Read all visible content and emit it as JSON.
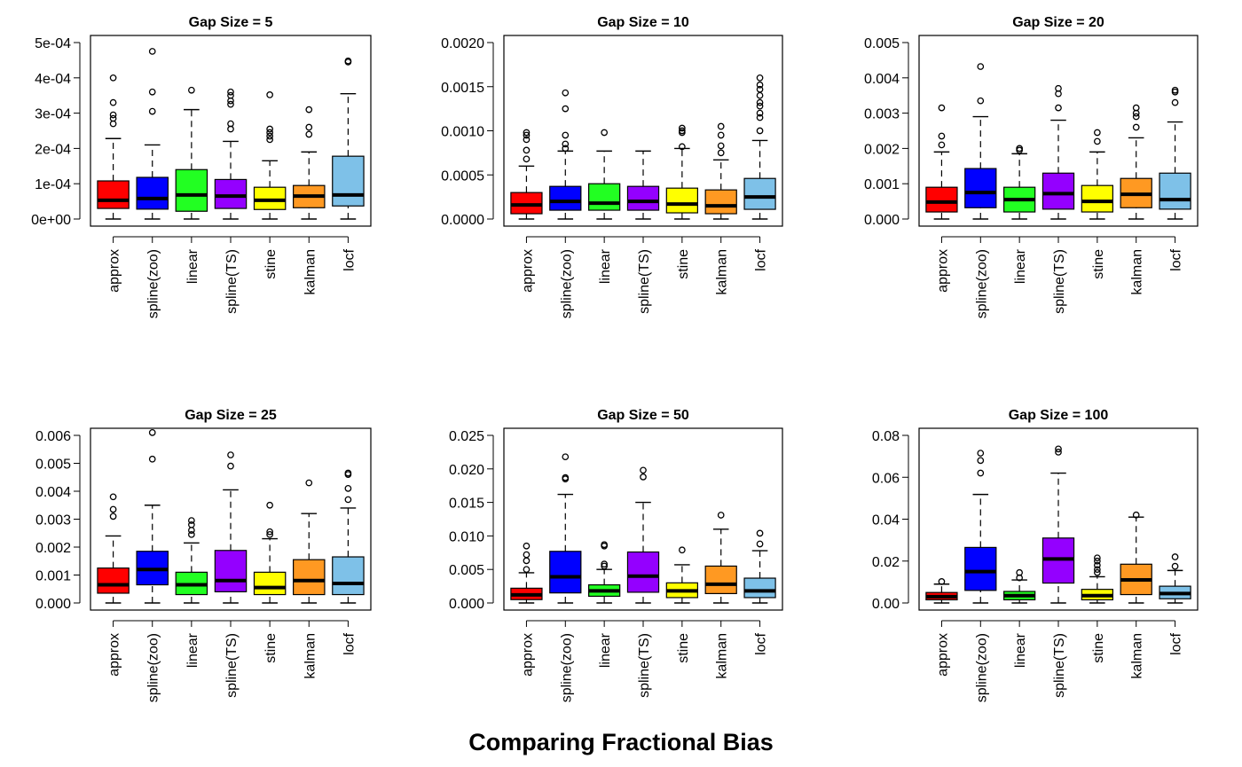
{
  "figure": {
    "title": "Comparing Fractional Bias"
  },
  "categories": [
    "approx",
    "spline(zoo)",
    "linear",
    "spline(TS)",
    "stine",
    "kalman",
    "locf"
  ],
  "colors": [
    "#ff0000",
    "#0000ff",
    "#22ff22",
    "#9400ff",
    "#ffff00",
    "#ff9922",
    "#7ec1e8"
  ],
  "chart_data": [
    {
      "type": "box",
      "title": "Gap Size = 5",
      "ylim": [
        0,
        0.0005
      ],
      "yticks": [
        0,
        0.0001,
        0.0002,
        0.0003,
        0.0004,
        0.0005
      ],
      "ytick_labels": [
        "0e+00",
        "1e-04",
        "2e-04",
        "3e-04",
        "4e-04",
        "5e-04"
      ],
      "boxes": [
        {
          "low": 0.0,
          "q1": 3e-05,
          "median": 5.3e-05,
          "q3": 0.000108,
          "high": 0.000228,
          "outliers": [
            0.00027,
            0.000285,
            0.000295,
            0.00033,
            0.0004
          ]
        },
        {
          "low": 0.0,
          "q1": 2.8e-05,
          "median": 5.8e-05,
          "q3": 0.000118,
          "high": 0.00021,
          "outliers": [
            0.000305,
            0.00036,
            0.000475
          ]
        },
        {
          "low": 0.0,
          "q1": 2.2e-05,
          "median": 6.8e-05,
          "q3": 0.00014,
          "high": 0.00031,
          "outliers": [
            0.000365
          ]
        },
        {
          "low": 0.0,
          "q1": 3e-05,
          "median": 6.5e-05,
          "q3": 0.000112,
          "high": 0.00022,
          "outliers": [
            0.000255,
            0.00027,
            0.000325,
            0.000335,
            0.00035,
            0.00036
          ]
        },
        {
          "low": 0.0,
          "q1": 2.7e-05,
          "median": 5.3e-05,
          "q3": 9e-05,
          "high": 0.000165,
          "outliers": [
            0.000225,
            0.000235,
            0.000245,
            0.000255,
            0.000352
          ]
        },
        {
          "low": 0.0,
          "q1": 3.2e-05,
          "median": 6.5e-05,
          "q3": 9.5e-05,
          "high": 0.00019,
          "outliers": [
            0.00024,
            0.00026,
            0.00031
          ]
        },
        {
          "low": 0.0,
          "q1": 3.7e-05,
          "median": 6.8e-05,
          "q3": 0.000178,
          "high": 0.000355,
          "outliers": [
            0.000445,
            0.000448
          ]
        }
      ]
    },
    {
      "type": "box",
      "title": "Gap Size = 10",
      "ylim": [
        0,
        0.002
      ],
      "yticks": [
        0,
        0.0005,
        0.001,
        0.0015,
        0.002
      ],
      "ytick_labels": [
        "0.0000",
        "0.0005",
        "0.0010",
        "0.0015",
        "0.0020"
      ],
      "boxes": [
        {
          "low": 0.0,
          "q1": 6e-05,
          "median": 0.00016,
          "q3": 0.0003,
          "high": 0.0006,
          "outliers": [
            0.00068,
            0.00078,
            0.0009,
            0.00095,
            0.00098
          ]
        },
        {
          "low": 0.0,
          "q1": 0.0001,
          "median": 0.0002,
          "q3": 0.00037,
          "high": 0.00077,
          "outliers": [
            0.0008,
            0.00085,
            0.00095,
            0.00125,
            0.00143
          ]
        },
        {
          "low": 0.0,
          "q1": 0.0001,
          "median": 0.00018,
          "q3": 0.0004,
          "high": 0.00077,
          "outliers": [
            0.00098
          ]
        },
        {
          "low": 0.0,
          "q1": 0.0001,
          "median": 0.0002,
          "q3": 0.00037,
          "high": 0.00077,
          "outliers": []
        },
        {
          "low": 0.0,
          "q1": 7e-05,
          "median": 0.00017,
          "q3": 0.00035,
          "high": 0.0008,
          "outliers": [
            0.00082,
            0.00098,
            0.001,
            0.00103
          ]
        },
        {
          "low": 0.0,
          "q1": 6e-05,
          "median": 0.00015,
          "q3": 0.00033,
          "high": 0.00067,
          "outliers": [
            0.00075,
            0.00083,
            0.00095,
            0.00105
          ]
        },
        {
          "low": 0.0,
          "q1": 0.00011,
          "median": 0.00025,
          "q3": 0.00046,
          "high": 0.00089,
          "outliers": [
            0.001,
            0.00115,
            0.0012,
            0.00128,
            0.00132,
            0.0014,
            0.00147,
            0.00152,
            0.0016
          ]
        }
      ]
    },
    {
      "type": "box",
      "title": "Gap Size = 20",
      "ylim": [
        0,
        0.005
      ],
      "yticks": [
        0,
        0.001,
        0.002,
        0.003,
        0.004,
        0.005
      ],
      "ytick_labels": [
        "0.000",
        "0.001",
        "0.002",
        "0.003",
        "0.004",
        "0.005"
      ],
      "boxes": [
        {
          "low": 0.0,
          "q1": 0.0002,
          "median": 0.00048,
          "q3": 0.0009,
          "high": 0.0019,
          "outliers": [
            0.0021,
            0.00235,
            0.00315
          ]
        },
        {
          "low": 0.0,
          "q1": 0.00032,
          "median": 0.00075,
          "q3": 0.00143,
          "high": 0.0029,
          "outliers": [
            0.00335,
            0.00432
          ]
        },
        {
          "low": 0.0,
          "q1": 0.0002,
          "median": 0.00055,
          "q3": 0.0009,
          "high": 0.00185,
          "outliers": [
            0.00195,
            0.002
          ]
        },
        {
          "low": 0.0,
          "q1": 0.00028,
          "median": 0.00072,
          "q3": 0.0013,
          "high": 0.0028,
          "outliers": [
            0.00315,
            0.00355,
            0.0037
          ]
        },
        {
          "low": 0.0,
          "q1": 0.0002,
          "median": 0.0005,
          "q3": 0.00095,
          "high": 0.0019,
          "outliers": [
            0.0022,
            0.00245
          ]
        },
        {
          "low": 0.0,
          "q1": 0.00032,
          "median": 0.0007,
          "q3": 0.00115,
          "high": 0.0023,
          "outliers": [
            0.0026,
            0.0029,
            0.003,
            0.00315
          ]
        },
        {
          "low": 0.0,
          "q1": 0.00028,
          "median": 0.00055,
          "q3": 0.0013,
          "high": 0.00275,
          "outliers": [
            0.0033,
            0.0036,
            0.00365
          ]
        }
      ]
    },
    {
      "type": "box",
      "title": "Gap Size = 25",
      "ylim": [
        0,
        0.006
      ],
      "yticks": [
        0,
        0.001,
        0.002,
        0.003,
        0.004,
        0.005,
        0.006
      ],
      "ytick_labels": [
        "0.000",
        "0.001",
        "0.002",
        "0.003",
        "0.004",
        "0.005",
        "0.006"
      ],
      "boxes": [
        {
          "low": 0.0,
          "q1": 0.00035,
          "median": 0.00065,
          "q3": 0.00125,
          "high": 0.0024,
          "outliers": [
            0.0031,
            0.00335,
            0.0038
          ]
        },
        {
          "low": 0.0,
          "q1": 0.00065,
          "median": 0.0012,
          "q3": 0.00185,
          "high": 0.0035,
          "outliers": [
            0.00515,
            0.0061
          ]
        },
        {
          "low": 0.0,
          "q1": 0.0003,
          "median": 0.00065,
          "q3": 0.0011,
          "high": 0.00215,
          "outliers": [
            0.00245,
            0.0026,
            0.0028,
            0.00295
          ]
        },
        {
          "low": 0.0,
          "q1": 0.0004,
          "median": 0.0008,
          "q3": 0.00188,
          "high": 0.00405,
          "outliers": [
            0.0049,
            0.0053
          ]
        },
        {
          "low": 0.0,
          "q1": 0.0003,
          "median": 0.00055,
          "q3": 0.0011,
          "high": 0.0023,
          "outliers": [
            0.00245,
            0.00255,
            0.0035
          ]
        },
        {
          "low": 0.0,
          "q1": 0.0003,
          "median": 0.0008,
          "q3": 0.00155,
          "high": 0.0032,
          "outliers": [
            0.0043
          ]
        },
        {
          "low": 0.0,
          "q1": 0.0003,
          "median": 0.0007,
          "q3": 0.00165,
          "high": 0.0034,
          "outliers": [
            0.0037,
            0.0041,
            0.0046,
            0.00465
          ]
        }
      ]
    },
    {
      "type": "box",
      "title": "Gap Size = 50",
      "ylim": [
        0,
        0.025
      ],
      "yticks": [
        0,
        0.005,
        0.01,
        0.015,
        0.02,
        0.025
      ],
      "ytick_labels": [
        "0.000",
        "0.005",
        "0.010",
        "0.015",
        "0.020",
        "0.025"
      ],
      "boxes": [
        {
          "low": 0.0,
          "q1": 0.0005,
          "median": 0.0012,
          "q3": 0.0022,
          "high": 0.0045,
          "outliers": [
            0.005,
            0.0063,
            0.0072,
            0.0085
          ]
        },
        {
          "low": 0.0,
          "q1": 0.0015,
          "median": 0.0039,
          "q3": 0.0077,
          "high": 0.0162,
          "outliers": [
            0.0185,
            0.0187,
            0.0218
          ]
        },
        {
          "low": 0.0,
          "q1": 0.001,
          "median": 0.0018,
          "q3": 0.0027,
          "high": 0.005,
          "outliers": [
            0.0055,
            0.0058,
            0.0085,
            0.0087
          ]
        },
        {
          "low": 0.0,
          "q1": 0.0016,
          "median": 0.004,
          "q3": 0.0076,
          "high": 0.015,
          "outliers": [
            0.0188,
            0.0198
          ]
        },
        {
          "low": 0.0,
          "q1": 0.0008,
          "median": 0.0018,
          "q3": 0.003,
          "high": 0.0057,
          "outliers": [
            0.0079
          ]
        },
        {
          "low": 0.0,
          "q1": 0.0014,
          "median": 0.0028,
          "q3": 0.0055,
          "high": 0.011,
          "outliers": [
            0.0131
          ]
        },
        {
          "low": 0.0,
          "q1": 0.0008,
          "median": 0.0018,
          "q3": 0.0037,
          "high": 0.0078,
          "outliers": [
            0.0088,
            0.0104
          ]
        }
      ]
    },
    {
      "type": "box",
      "title": "Gap Size = 100",
      "ylim": [
        0,
        0.08
      ],
      "yticks": [
        0,
        0.02,
        0.04,
        0.06,
        0.08
      ],
      "ytick_labels": [
        "0.00",
        "0.02",
        "0.04",
        "0.06",
        "0.08"
      ],
      "boxes": [
        {
          "low": 0.0,
          "q1": 0.0015,
          "median": 0.003,
          "q3": 0.005,
          "high": 0.009,
          "outliers": [
            0.0102
          ]
        },
        {
          "low": 0.0,
          "q1": 0.006,
          "median": 0.015,
          "q3": 0.0265,
          "high": 0.0518,
          "outliers": [
            0.062,
            0.068,
            0.0715
          ]
        },
        {
          "low": 0.0,
          "q1": 0.0015,
          "median": 0.0035,
          "q3": 0.0055,
          "high": 0.011,
          "outliers": [
            0.012,
            0.0145
          ]
        },
        {
          "low": 0.0,
          "q1": 0.0095,
          "median": 0.021,
          "q3": 0.031,
          "high": 0.062,
          "outliers": [
            0.072,
            0.0735
          ]
        },
        {
          "low": 0.0,
          "q1": 0.0015,
          "median": 0.0035,
          "q3": 0.0065,
          "high": 0.0125,
          "outliers": [
            0.0145,
            0.016,
            0.018,
            0.02,
            0.0215
          ]
        },
        {
          "low": 0.0,
          "q1": 0.004,
          "median": 0.011,
          "q3": 0.0185,
          "high": 0.041,
          "outliers": [
            0.042
          ]
        },
        {
          "low": 0.0,
          "q1": 0.002,
          "median": 0.0045,
          "q3": 0.008,
          "high": 0.0155,
          "outliers": [
            0.0175,
            0.022
          ]
        }
      ]
    }
  ]
}
